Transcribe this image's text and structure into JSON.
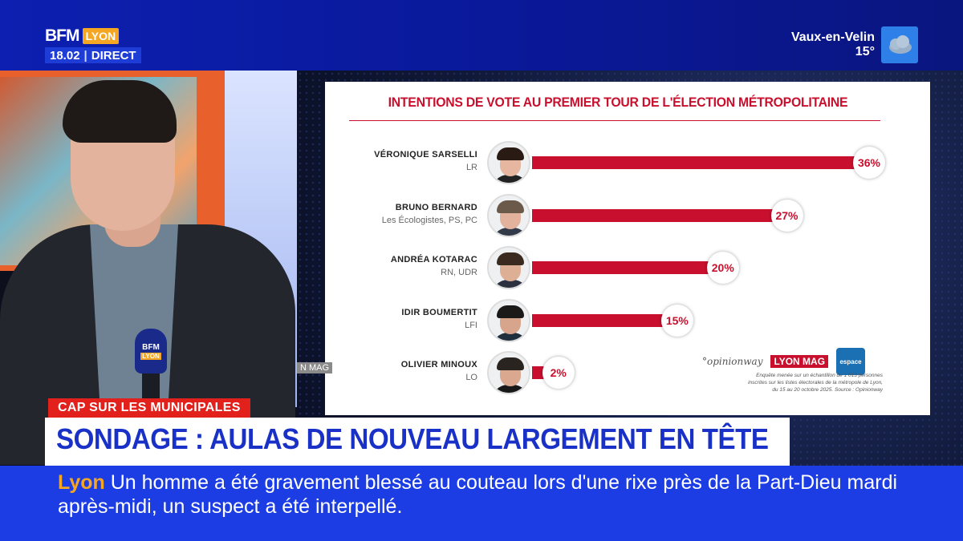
{
  "channel": {
    "brand": "BFM",
    "region": "LYON",
    "time": "18.02",
    "live_label": "DIRECT"
  },
  "weather": {
    "city": "Vaux-en-Velin",
    "temperature": "15°",
    "icon": "cloud-icon"
  },
  "chart_data": {
    "type": "bar",
    "orientation": "horizontal",
    "title": "INTENTIONS DE VOTE AU PREMIER TOUR DE L'ÉLECTION MÉTROPOLITAINE",
    "categories": [
      "VÉRONIQUE SARSELLI",
      "BRUNO BERNARD",
      "ANDRÉA KOTARAC",
      "IDIR BOUMERTIT",
      "OLIVIER MINOUX"
    ],
    "parties": [
      "LR",
      "Les Écologistes, PS, PC",
      "RN, UDR",
      "LFI",
      "LO"
    ],
    "values": [
      36,
      27,
      20,
      15,
      2
    ],
    "value_labels": [
      "36%",
      "27%",
      "20%",
      "15%",
      "2%"
    ],
    "unit": "%",
    "xlim": [
      0,
      36
    ],
    "bar_color": "#c8102e",
    "grid": false,
    "sources": [
      "°opinionway",
      "LYON MAG",
      "espace"
    ],
    "note": "Enquête menée sur un échantillon de 1 013 personnes inscrites sur les listes électorales de la métropole de Lyon, du 15 au 20 octobre 2025. Source : Opinionway"
  },
  "overlay_tag": "N MAG",
  "lower_third": {
    "tag": "CAP SUR LES MUNICIPALES",
    "headline": "SONDAGE : AULAS DE NOUVEAU LARGEMENT EN TÊTE"
  },
  "ticker": {
    "city": "Lyon",
    "text": "Un homme a été gravement blessé au couteau lors d'une rixe près de la Part-Dieu mardi après-midi, un suspect a été interpellé."
  },
  "colors": {
    "brand_blue": "#1d3de4",
    "accent_orange": "#f5a623",
    "tag_red": "#e2211c",
    "headline_blue": "#1a31c8"
  }
}
